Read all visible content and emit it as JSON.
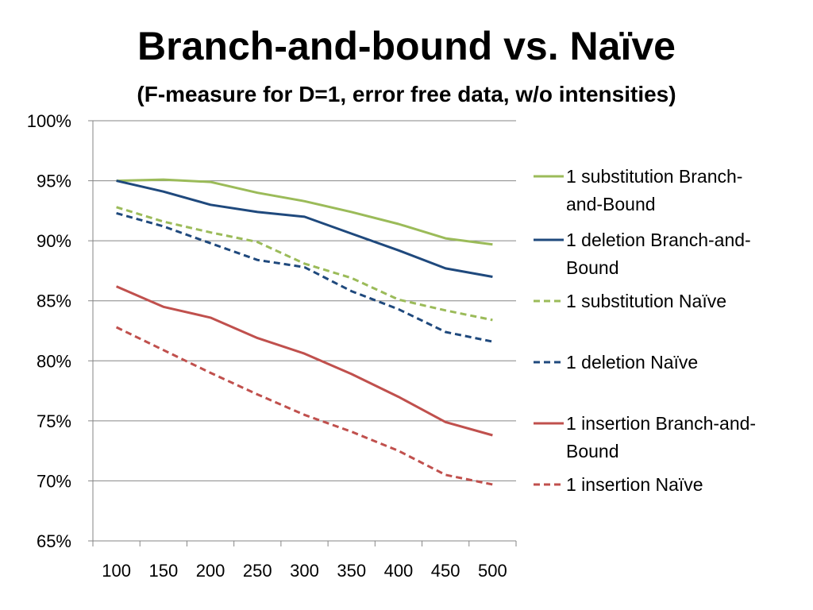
{
  "slide": {
    "title": "Branch-and-bound vs. Naïve",
    "subtitle": "(F-measure for D=1, error free data, w/o intensities)"
  },
  "colors": {
    "green": "#9BBB59",
    "blue": "#1F497D",
    "red": "#C0504D",
    "grid": "#868686",
    "axis": "#868686"
  },
  "chart_data": {
    "type": "line",
    "title": "Branch-and-bound vs. Naïve",
    "subtitle": "(F-measure for D=1, error free data, w/o intensities)",
    "xlabel": "",
    "ylabel": "",
    "categories": [
      "100",
      "150",
      "200",
      "250",
      "300",
      "350",
      "400",
      "450",
      "500"
    ],
    "y_ticks": [
      "65%",
      "70%",
      "75%",
      "80%",
      "85%",
      "90%",
      "95%",
      "100%"
    ],
    "ylim": [
      65,
      100
    ],
    "y_tick_step": 5,
    "grid": "horizontal",
    "legend_position": "right",
    "series": [
      {
        "name": "1 substitution Branch-and-Bound",
        "color": "#9BBB59",
        "dash": "solid",
        "values": [
          95.0,
          95.1,
          94.9,
          94.0,
          93.3,
          92.4,
          91.4,
          90.2,
          89.7
        ]
      },
      {
        "name": "1 deletion Branch-and-Bound",
        "color": "#1F497D",
        "dash": "solid",
        "values": [
          95.0,
          94.1,
          93.0,
          92.4,
          92.0,
          90.6,
          89.2,
          87.7,
          87.0
        ]
      },
      {
        "name": "1 substitution Naïve",
        "color": "#9BBB59",
        "dash": "dashed",
        "values": [
          92.8,
          91.6,
          90.7,
          89.9,
          88.1,
          86.9,
          85.1,
          84.2,
          83.4
        ]
      },
      {
        "name": "1 deletion Naïve",
        "color": "#1F497D",
        "dash": "dashed",
        "values": [
          92.3,
          91.2,
          89.8,
          88.4,
          87.8,
          85.8,
          84.3,
          82.4,
          81.6
        ]
      },
      {
        "name": "1 insertion Branch-and-Bound",
        "color": "#C0504D",
        "dash": "solid",
        "values": [
          86.2,
          84.5,
          83.6,
          81.9,
          80.6,
          78.9,
          77.0,
          74.9,
          73.8
        ]
      },
      {
        "name": "1 insertion Naïve",
        "color": "#C0504D",
        "dash": "dashed",
        "values": [
          82.8,
          80.9,
          79.0,
          77.2,
          75.5,
          74.1,
          72.5,
          70.5,
          69.7
        ]
      }
    ],
    "legend": [
      {
        "lines": [
          "1 substitution Branch-",
          "and-Bound"
        ]
      },
      {
        "lines": [
          "1 deletion Branch-and-",
          "Bound"
        ]
      },
      {
        "lines": [
          "1 substitution Naïve"
        ]
      },
      {
        "lines": [
          "1 deletion Naïve"
        ]
      },
      {
        "lines": [
          "1 insertion Branch-and-",
          "Bound"
        ]
      },
      {
        "lines": [
          "1 insertion Naïve"
        ]
      }
    ]
  }
}
